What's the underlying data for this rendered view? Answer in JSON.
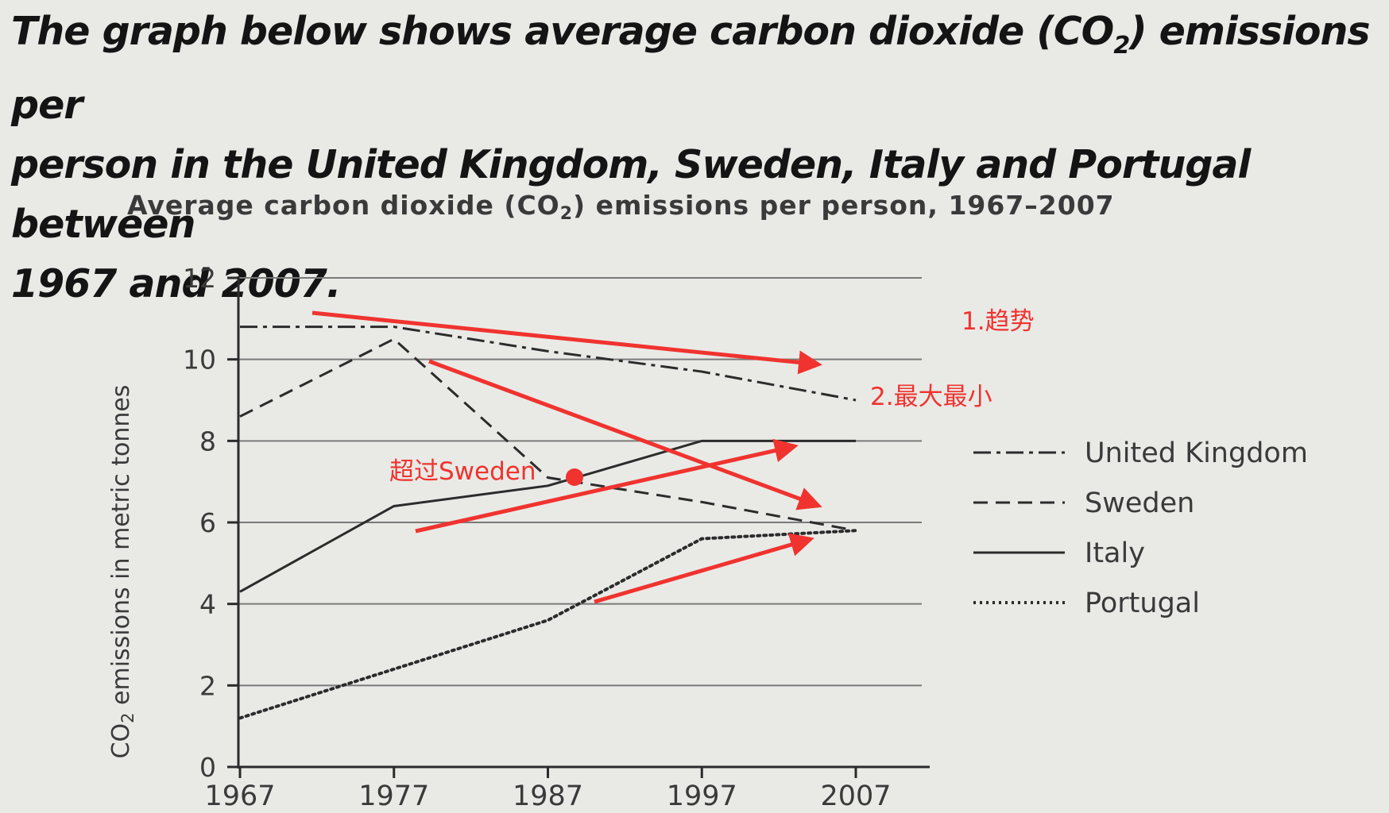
{
  "prompt": {
    "line1_a": "The graph below shows average carbon dioxide (CO",
    "line1_sub": "2",
    "line1_b": ") emissions per",
    "line2": "person in the United Kingdom, Sweden, Italy and Portugal between",
    "line3": "1967 and 2007."
  },
  "chart_data": {
    "type": "line",
    "title_a": "Average carbon dioxide (CO",
    "title_sub": "2",
    "title_b": ") emissions per person, 1967–2007",
    "ylabel_a": "CO",
    "ylabel_sub": "2",
    "ylabel_b": " emissions in metric tonnes",
    "xlabel": "",
    "x": [
      1967,
      1977,
      1987,
      1997,
      2007
    ],
    "x_tick_labels": [
      "1967",
      "1977",
      "1987",
      "1997",
      "2007"
    ],
    "ylim": [
      0,
      12
    ],
    "y_ticks": [
      0,
      2,
      4,
      6,
      8,
      10,
      12
    ],
    "y_tick_labels": [
      "0",
      "2",
      "4",
      "6",
      "8",
      "10",
      "12"
    ],
    "grid": true,
    "legend_position": "right",
    "series": [
      {
        "name": "United Kingdom",
        "style": "dash-dot",
        "values": [
          10.8,
          10.8,
          10.2,
          9.7,
          9.0
        ]
      },
      {
        "name": "Sweden",
        "style": "dashed",
        "values": [
          8.6,
          10.5,
          7.1,
          6.5,
          5.8
        ]
      },
      {
        "name": "Italy",
        "style": "solid",
        "values": [
          4.3,
          6.4,
          6.9,
          8.0,
          8.0
        ]
      },
      {
        "name": "Portugal",
        "style": "dotted",
        "values": [
          1.2,
          2.4,
          3.6,
          5.6,
          5.8
        ]
      }
    ]
  },
  "annotations": {
    "color": "#f0332f",
    "trend_label": "1.趋势",
    "maxmin_label": "2.最大最小",
    "exceed_label": "超过Sweden"
  },
  "colors": {
    "line": "#2b2b2b",
    "grid": "#7a7a7a",
    "annotation": "#f0332f"
  }
}
